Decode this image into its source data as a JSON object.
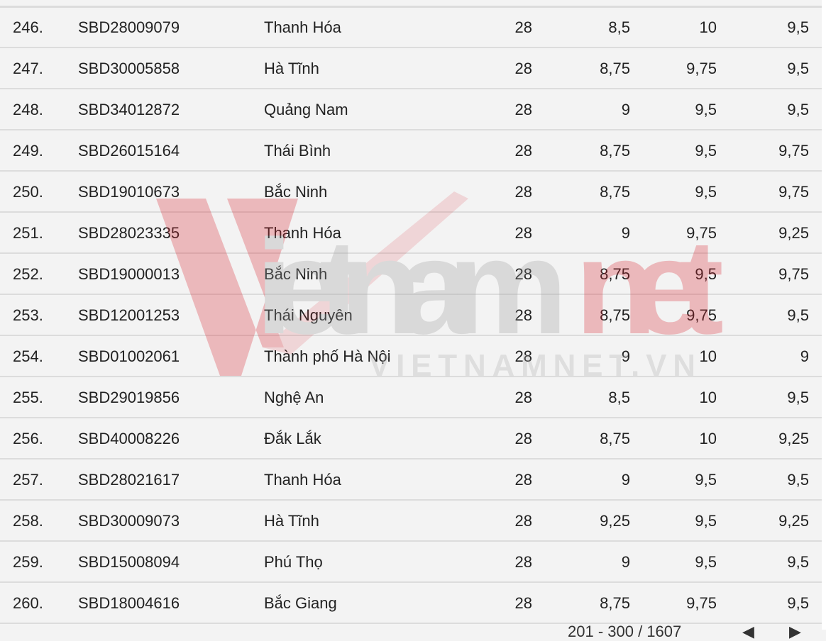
{
  "rows": [
    [
      "246.",
      "SBD28009079",
      "Thanh Hóa",
      "28",
      "8,5",
      "10",
      "9,5"
    ],
    [
      "247.",
      "SBD30005858",
      "Hà Tĩnh",
      "28",
      "8,75",
      "9,75",
      "9,5"
    ],
    [
      "248.",
      "SBD34012872",
      "Quảng Nam",
      "28",
      "9",
      "9,5",
      "9,5"
    ],
    [
      "249.",
      "SBD26015164",
      "Thái Bình",
      "28",
      "8,75",
      "9,5",
      "9,75"
    ],
    [
      "250.",
      "SBD19010673",
      "Bắc Ninh",
      "28",
      "8,75",
      "9,5",
      "9,75"
    ],
    [
      "251.",
      "SBD28023335",
      "Thanh Hóa",
      "28",
      "9",
      "9,75",
      "9,25"
    ],
    [
      "252.",
      "SBD19000013",
      "Bắc Ninh",
      "28",
      "8,75",
      "9,5",
      "9,75"
    ],
    [
      "253.",
      "SBD12001253",
      "Thái Nguyên",
      "28",
      "8,75",
      "9,75",
      "9,5"
    ],
    [
      "254.",
      "SBD01002061",
      "Thành phố Hà Nội",
      "28",
      "9",
      "10",
      "9"
    ],
    [
      "255.",
      "SBD29019856",
      "Nghệ An",
      "28",
      "8,5",
      "10",
      "9,5"
    ],
    [
      "256.",
      "SBD40008226",
      "Đắk Lắk",
      "28",
      "8,75",
      "10",
      "9,25"
    ],
    [
      "257.",
      "SBD28021617",
      "Thanh Hóa",
      "28",
      "9",
      "9,5",
      "9,5"
    ],
    [
      "258.",
      "SBD30009073",
      "Hà Tĩnh",
      "28",
      "9,25",
      "9,5",
      "9,25"
    ],
    [
      "259.",
      "SBD15008094",
      "Phú Thọ",
      "28",
      "9",
      "9,5",
      "9,5"
    ],
    [
      "260.",
      "SBD18004616",
      "Bắc Giang",
      "28",
      "8,75",
      "9,75",
      "9,5"
    ]
  ],
  "watermark": {
    "logo_text": "vietnamnet",
    "url_text": "VIETNAMNET.VN",
    "color": "#d9232d"
  },
  "pagination": {
    "range": "201 - 300 / 1607",
    "prev_icon": "chevron-left-icon",
    "next_icon": "chevron-right-icon"
  }
}
